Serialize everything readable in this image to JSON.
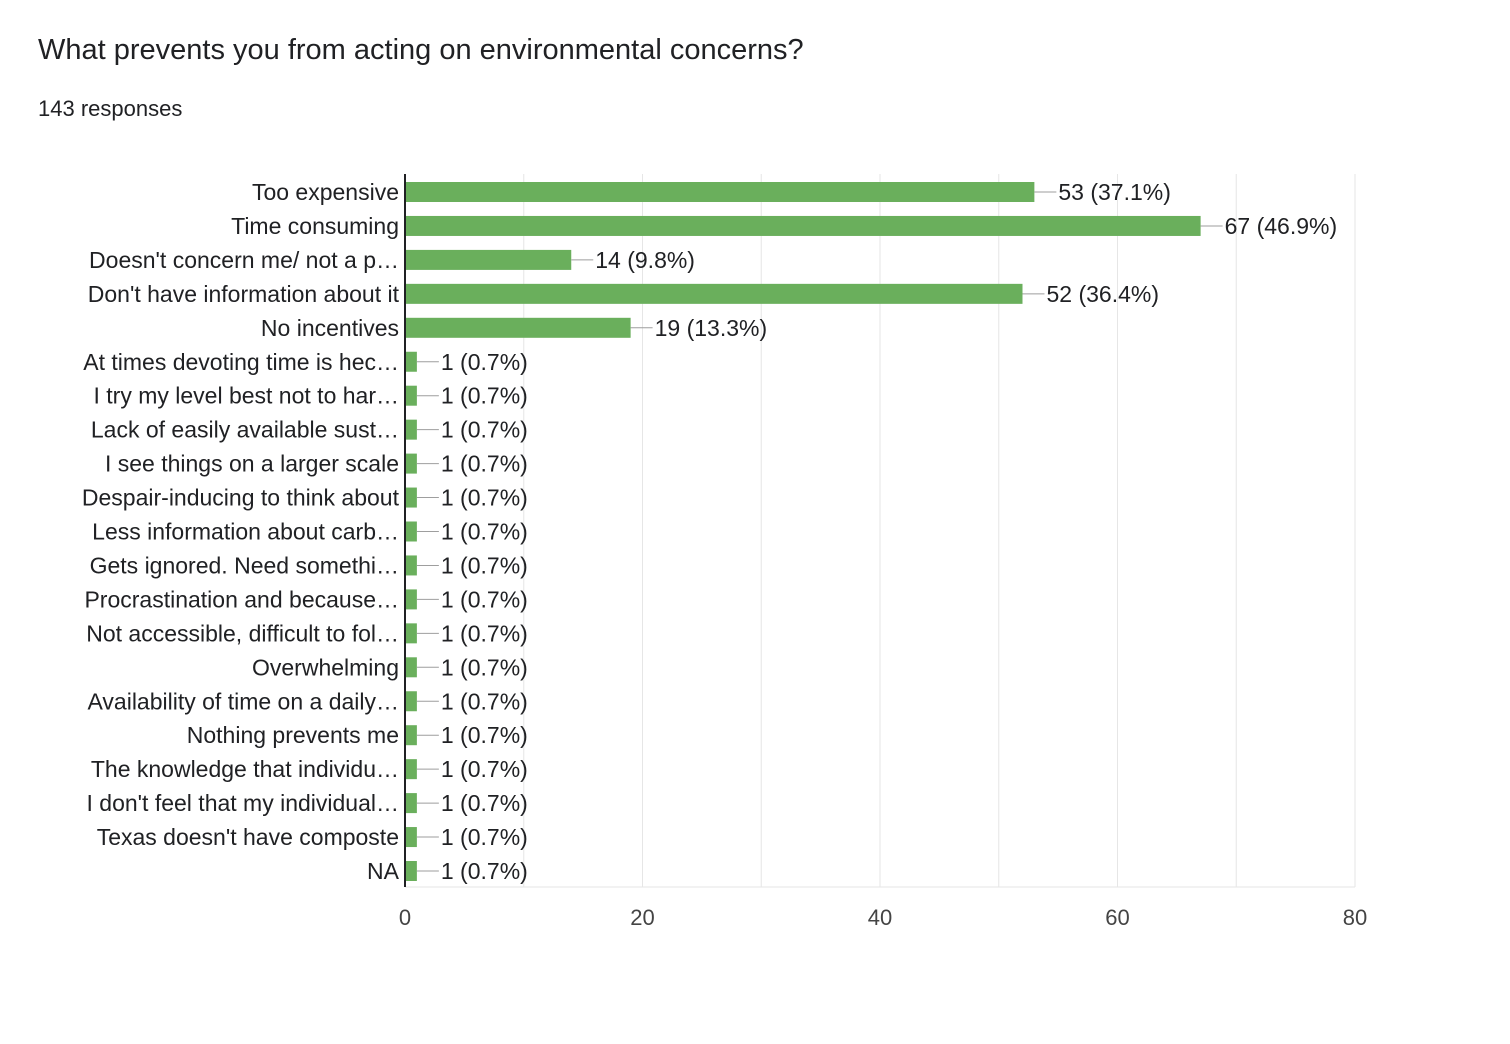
{
  "header": {
    "title": "What prevents you from acting on environmental concerns?",
    "responses": "143 responses"
  },
  "colors": {
    "bar": "#6aaf5c",
    "grid": "#e6e6e6",
    "axis": "#202124",
    "leader": "#9e9e9e",
    "text": "#202124"
  },
  "chart_data": {
    "type": "bar",
    "orientation": "horizontal",
    "categories": [
      "Too expensive",
      "Time consuming",
      "Doesn't concern me/ not a p…",
      "Don't have information about it",
      "No incentives",
      "At times devoting time is hec…",
      "I try my level best not to har…",
      "Lack of easily available sust…",
      "I see things on a larger scale",
      "Despair-inducing to think about",
      "Less information about carb…",
      "Gets ignored. Need somethi…",
      "Procrastination and because…",
      "Not accessible, difficult to fol…",
      "Overwhelming",
      "Availability of time on a daily…",
      "Nothing prevents me",
      "The knowledge that individu…",
      "I don't feel that my individual…",
      "Texas doesn't have composte",
      "NA"
    ],
    "values": [
      53,
      67,
      14,
      52,
      19,
      1,
      1,
      1,
      1,
      1,
      1,
      1,
      1,
      1,
      1,
      1,
      1,
      1,
      1,
      1,
      1
    ],
    "data_labels": [
      "53 (37.1%)",
      "67 (46.9%)",
      "14 (9.8%)",
      "52 (36.4%)",
      "19 (13.3%)",
      "1 (0.7%)",
      "1 (0.7%)",
      "1 (0.7%)",
      "1 (0.7%)",
      "1 (0.7%)",
      "1 (0.7%)",
      "1 (0.7%)",
      "1 (0.7%)",
      "1 (0.7%)",
      "1 (0.7%)",
      "1 (0.7%)",
      "1 (0.7%)",
      "1 (0.7%)",
      "1 (0.7%)",
      "1 (0.7%)",
      "1 (0.7%)"
    ],
    "xlim": [
      0,
      80
    ],
    "xticks": [
      0,
      20,
      40,
      60,
      80
    ],
    "grid": true,
    "legend": "none"
  }
}
